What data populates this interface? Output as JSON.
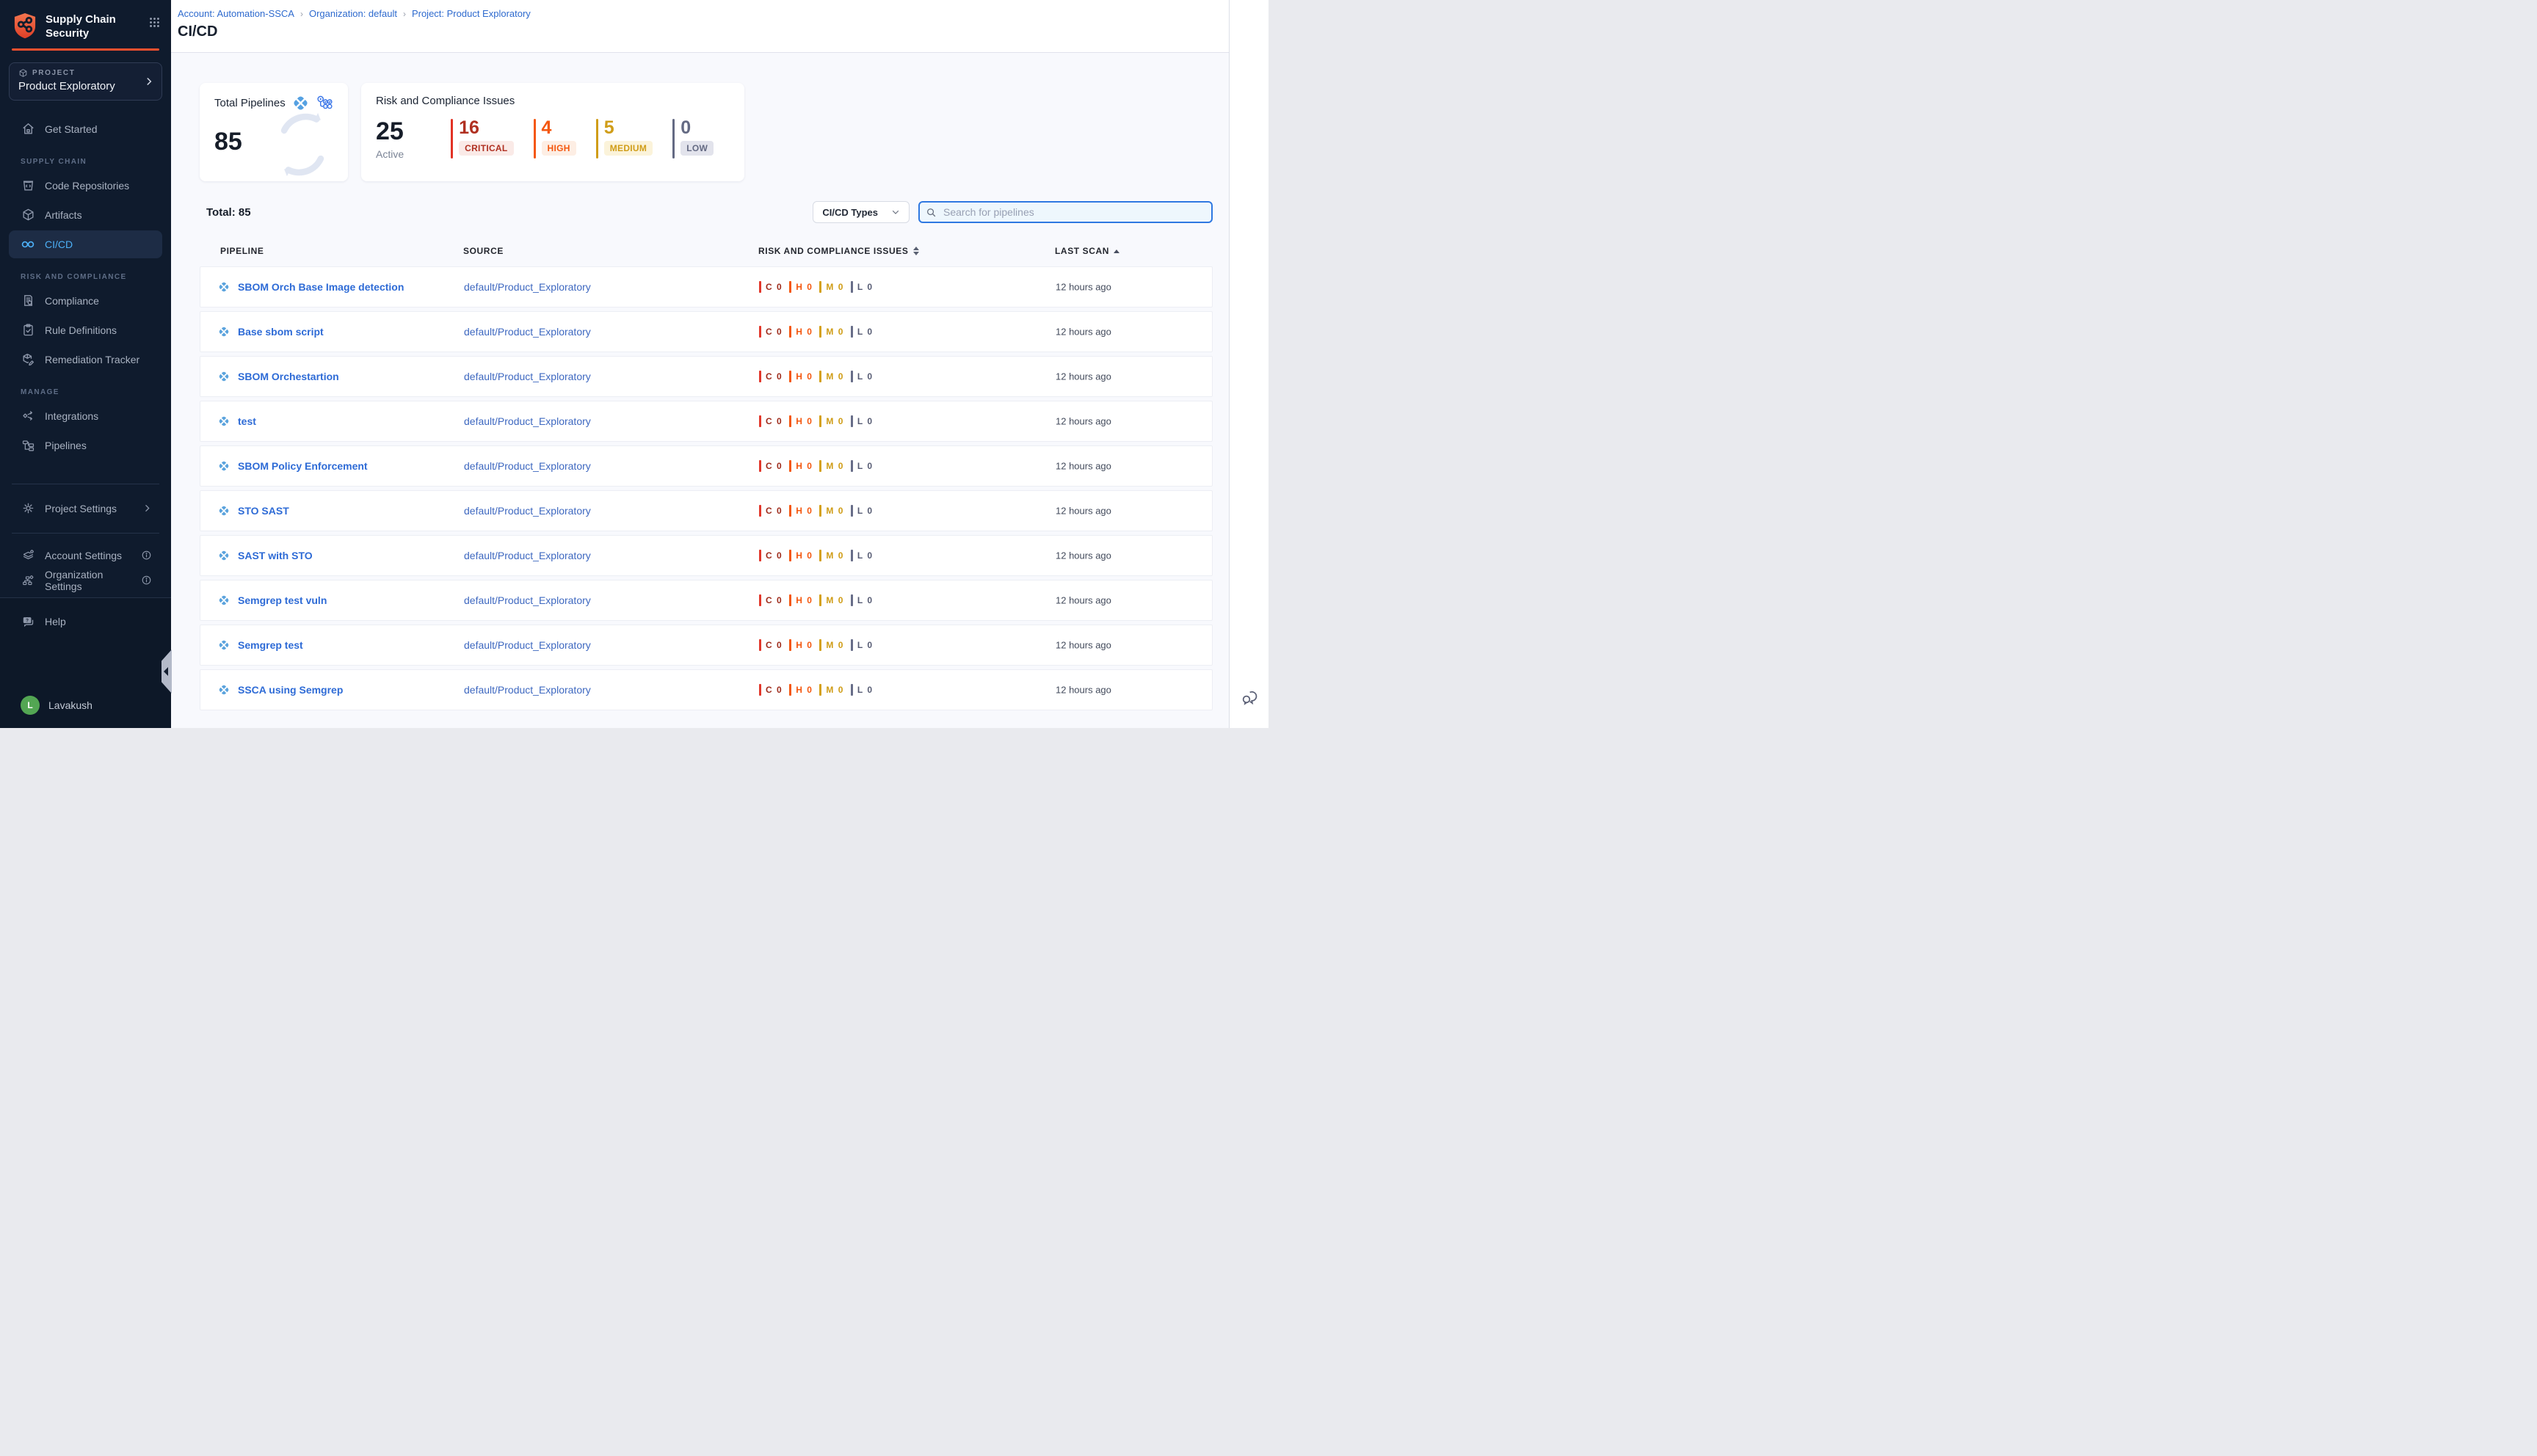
{
  "brand": {
    "title_line1": "Supply Chain",
    "title_line2": "Security"
  },
  "project": {
    "eyebrow": "PROJECT",
    "name": "Product Exploratory"
  },
  "sidebar": {
    "get_started": "Get Started",
    "sections": [
      {
        "label": "SUPPLY CHAIN",
        "items": [
          {
            "label": "Code Repositories"
          },
          {
            "label": "Artifacts"
          },
          {
            "label": "CI/CD"
          }
        ]
      },
      {
        "label": "RISK AND COMPLIANCE",
        "items": [
          {
            "label": "Compliance"
          },
          {
            "label": "Rule Definitions"
          },
          {
            "label": "Remediation Tracker"
          }
        ]
      },
      {
        "label": "MANAGE",
        "items": [
          {
            "label": "Integrations"
          },
          {
            "label": "Pipelines"
          }
        ]
      }
    ],
    "project_settings": "Project Settings",
    "account_settings": "Account Settings",
    "organization_settings": "Organization Settings",
    "help": "Help",
    "user": {
      "name": "Lavakush",
      "initial": "L"
    }
  },
  "breadcrumb": {
    "account": "Account: Automation-SSCA",
    "organization": "Organization: default",
    "project": "Project: Product Exploratory",
    "separator": "›"
  },
  "page": {
    "title": "CI/CD"
  },
  "cards": {
    "total_pipelines": {
      "label": "Total Pipelines",
      "value": "85"
    },
    "risk": {
      "label": "Risk and Compliance Issues",
      "active": {
        "value": "25",
        "label": "Active"
      },
      "severities": [
        {
          "value": "16",
          "label": "CRITICAL",
          "color": "#b03021",
          "bar": "#e23325",
          "bg": "#faeae7"
        },
        {
          "value": "4",
          "label": "HIGH",
          "color": "#f4570f",
          "bar": "#f4570f",
          "bg": "#fdeee4"
        },
        {
          "value": "5",
          "label": "MEDIUM",
          "color": "#d09d18",
          "bar": "#d09d18",
          "bg": "#fbf3da"
        },
        {
          "value": "0",
          "label": "LOW",
          "color": "#646a83",
          "bar": "#646a83",
          "bg": "#e2e3ec"
        }
      ]
    }
  },
  "toolbar": {
    "total": "Total: 85",
    "type_filter": "CI/CD Types",
    "search_placeholder": "Search for pipelines"
  },
  "table": {
    "columns": {
      "pipeline": "PIPELINE",
      "source": "SOURCE",
      "risk": "RISK AND COMPLIANCE ISSUES",
      "last_scan": "LAST SCAN"
    },
    "issue_chips": [
      {
        "label": "C 0",
        "color": "#9e2a1a",
        "bar": "#e2382c"
      },
      {
        "label": "H 0",
        "color": "#f4570f",
        "bar": "#f4570f"
      },
      {
        "label": "M 0",
        "color": "#cf9c15",
        "bar": "#d4a017"
      },
      {
        "label": "L 0",
        "color": "#565b73",
        "bar": "#676d88"
      }
    ],
    "rows": [
      {
        "name": "SBOM Orch Base Image detection",
        "source": "default/Product_Exploratory",
        "last_scan": "12 hours ago"
      },
      {
        "name": "Base sbom script",
        "source": "default/Product_Exploratory",
        "last_scan": "12 hours ago"
      },
      {
        "name": "SBOM Orchestartion",
        "source": "default/Product_Exploratory",
        "last_scan": "12 hours ago"
      },
      {
        "name": "test",
        "source": "default/Product_Exploratory",
        "last_scan": "12 hours ago"
      },
      {
        "name": "SBOM Policy Enforcement",
        "source": "default/Product_Exploratory",
        "last_scan": "12 hours ago"
      },
      {
        "name": "STO SAST",
        "source": "default/Product_Exploratory",
        "last_scan": "12 hours ago"
      },
      {
        "name": "SAST with STO",
        "source": "default/Product_Exploratory",
        "last_scan": "12 hours ago"
      },
      {
        "name": "Semgrep test vuln",
        "source": "default/Product_Exploratory",
        "last_scan": "12 hours ago"
      },
      {
        "name": "Semgrep test",
        "source": "default/Product_Exploratory",
        "last_scan": "12 hours ago"
      },
      {
        "name": "SSCA using Semgrep",
        "source": "default/Product_Exploratory",
        "last_scan": "12 hours ago"
      }
    ]
  }
}
